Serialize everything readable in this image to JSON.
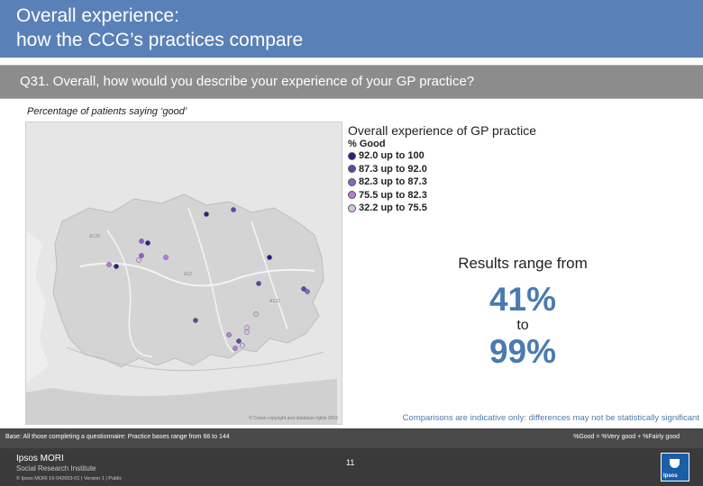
{
  "header": {
    "title": "Overall experience:\nhow the CCG’s practices compare"
  },
  "question": {
    "text": "Q31. Overall, how would you describe your experience of your GP practice?"
  },
  "subtitle": "Percentage of patients saying ‘good’",
  "map": {
    "copyright": "© Crown copyright and database rights 2016"
  },
  "legend": {
    "title": "Overall experience of GP practice",
    "subtitle": "% Good",
    "items": [
      {
        "label": "92.0 up to 100",
        "color": "#2b1f8c"
      },
      {
        "label": "87.3 up to 92.0",
        "color": "#5a4aa8"
      },
      {
        "label": "82.3 up to 87.3",
        "color": "#8a63c7"
      },
      {
        "label": "75.5 up to 82.3",
        "color": "#b77ae0"
      },
      {
        "label": "32.2 up to 75.5",
        "color": "#dcbde8"
      }
    ]
  },
  "results": {
    "range_label": "Results range from",
    "low": "41%",
    "to_label": "to",
    "high": "99%"
  },
  "disclaimer": "Comparisons are indicative only: differences may not be statistically significant",
  "footer": {
    "base": "Base: All those completing a questionnaire: Practice bases range from 66 to 144",
    "good_definition": "%Good = %Very good + %Fairly good",
    "logo_line1": "Ipsos MORI",
    "logo_line2": "Social Research Institute",
    "copyright": "© Ipsos MORI     16-042653-01 | Version 1 | Public",
    "page_number": "11",
    "logo_word": "Ipsos"
  }
}
